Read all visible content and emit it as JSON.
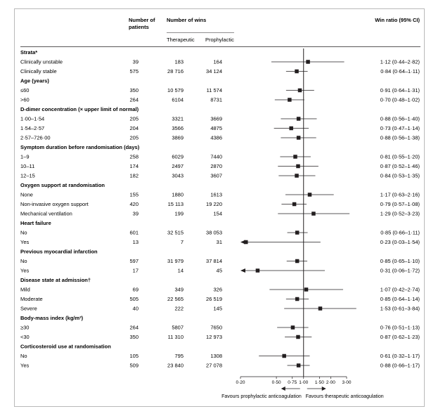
{
  "chart_data": {
    "type": "forest",
    "headers": {
      "patients": [
        "Number of",
        "patients"
      ],
      "wins": "Number of wins",
      "therapeutic": "Therapeutic",
      "prophylactic": "Prophylactic",
      "ratio": "Win ratio (95% CI)"
    },
    "x_axis": {
      "scale": "log",
      "range": [
        0.2,
        3.0
      ],
      "reference": 1.0,
      "ticks": [
        "0·20",
        "0·50",
        "0·75",
        "1·00",
        "1·50",
        "2·00",
        "3·00"
      ],
      "tick_values": [
        0.2,
        0.5,
        0.75,
        1.0,
        1.5,
        2.0,
        3.0
      ],
      "label_left": "Favours prophylactic anticoagulation",
      "label_right": "Favours therapeutic anticoagulation"
    },
    "rows": [
      {
        "type": "group",
        "label": "Strata*"
      },
      {
        "type": "row",
        "label": "Clinically unstable",
        "n": "39",
        "ther": "183",
        "proph": "164",
        "ratio": "1·12 (0·44–2·82)",
        "est": 1.12,
        "lo": 0.44,
        "hi": 2.82
      },
      {
        "type": "row",
        "label": "Clinically stable",
        "n": "575",
        "ther": "28 716",
        "proph": "34 124",
        "ratio": "0·84 (0·64–1·11)",
        "est": 0.84,
        "lo": 0.64,
        "hi": 1.11
      },
      {
        "type": "group",
        "label": "Age (years)"
      },
      {
        "type": "row",
        "label": "≤60",
        "n": "350",
        "ther": "10 579",
        "proph": "11 574",
        "ratio": "0·91 (0·64–1·31)",
        "est": 0.91,
        "lo": 0.64,
        "hi": 1.31
      },
      {
        "type": "row",
        "label": ">60",
        "n": "264",
        "ther": "6104",
        "proph": "8731",
        "ratio": "0·70 (0·48–1·02)",
        "est": 0.7,
        "lo": 0.48,
        "hi": 1.02
      },
      {
        "type": "group",
        "label": "D-dimer concentration (× upper limit of normal)"
      },
      {
        "type": "row",
        "label": "1·00–1·54",
        "n": "205",
        "ther": "3321",
        "proph": "3669",
        "ratio": "0·88 (0·56–1·40)",
        "est": 0.88,
        "lo": 0.56,
        "hi": 1.4
      },
      {
        "type": "row",
        "label": "1·54–2·57",
        "n": "204",
        "ther": "3566",
        "proph": "4875",
        "ratio": "0·73 (0·47–1·14)",
        "est": 0.73,
        "lo": 0.47,
        "hi": 1.14
      },
      {
        "type": "row",
        "label": "2·57–726·00",
        "n": "205",
        "ther": "3869",
        "proph": "4386",
        "ratio": "0·88 (0·56–1·38)",
        "est": 0.88,
        "lo": 0.56,
        "hi": 1.38
      },
      {
        "type": "group",
        "label": "Symptom duration before randomisation (days)"
      },
      {
        "type": "row",
        "label": "1–9",
        "n": "258",
        "ther": "6029",
        "proph": "7440",
        "ratio": "0·81 (0·55–1·20)",
        "est": 0.81,
        "lo": 0.55,
        "hi": 1.2
      },
      {
        "type": "row",
        "label": "10–11",
        "n": "174",
        "ther": "2497",
        "proph": "2870",
        "ratio": "0·87 (0·52–1·46)",
        "est": 0.87,
        "lo": 0.52,
        "hi": 1.46
      },
      {
        "type": "row",
        "label": "12–15",
        "n": "182",
        "ther": "3043",
        "proph": "3607",
        "ratio": "0·84 (0·53–1·35)",
        "est": 0.84,
        "lo": 0.53,
        "hi": 1.35
      },
      {
        "type": "group",
        "label": "Oxygen support at randomisation"
      },
      {
        "type": "row",
        "label": "None",
        "n": "155",
        "ther": "1880",
        "proph": "1613",
        "ratio": "1·17 (0·63–2·16)",
        "est": 1.17,
        "lo": 0.63,
        "hi": 2.16
      },
      {
        "type": "row",
        "label": "Non-invasive oxygen support",
        "n": "420",
        "ther": "15 113",
        "proph": "19 220",
        "ratio": "0·79 (0·57–1·08)",
        "est": 0.79,
        "lo": 0.57,
        "hi": 1.08
      },
      {
        "type": "row",
        "label": "Mechanical ventilation",
        "n": "39",
        "ther": "199",
        "proph": "154",
        "ratio": "1·29 (0·52–3·23)",
        "est": 1.29,
        "lo": 0.52,
        "hi": 3.23
      },
      {
        "type": "group",
        "label": "Heart failure"
      },
      {
        "type": "row",
        "label": "No",
        "n": "601",
        "ther": "32 515",
        "proph": "38 053",
        "ratio": "0·85 (0·66–1·11)",
        "est": 0.85,
        "lo": 0.66,
        "hi": 1.11
      },
      {
        "type": "row",
        "label": "Yes",
        "n": "13",
        "ther": "7",
        "proph": "31",
        "ratio": "0·23 (0·03–1·54)",
        "est": 0.23,
        "lo": 0.03,
        "hi": 1.54
      },
      {
        "type": "group",
        "label": "Previous myocardial infarction"
      },
      {
        "type": "row",
        "label": "No",
        "n": "597",
        "ther": "31 979",
        "proph": "37 814",
        "ratio": "0·85 (0·65–1·10)",
        "est": 0.85,
        "lo": 0.65,
        "hi": 1.1
      },
      {
        "type": "row",
        "label": "Yes",
        "n": "17",
        "ther": "14",
        "proph": "45",
        "ratio": "0·31 (0·06–1·72)",
        "est": 0.31,
        "lo": 0.06,
        "hi": 1.72
      },
      {
        "type": "group",
        "label": "Disease state at admission†"
      },
      {
        "type": "row",
        "label": "Mild",
        "n": "69",
        "ther": "349",
        "proph": "326",
        "ratio": "1·07 (0·42–2·74)",
        "est": 1.07,
        "lo": 0.42,
        "hi": 2.74
      },
      {
        "type": "row",
        "label": "Moderate",
        "n": "505",
        "ther": "22 565",
        "proph": "26 519",
        "ratio": "0·85 (0·64–1·14)",
        "est": 0.85,
        "lo": 0.64,
        "hi": 1.14
      },
      {
        "type": "row",
        "label": "Severe",
        "n": "40",
        "ther": "222",
        "proph": "145",
        "ratio": "1·53 (0·61–3·84)",
        "est": 1.53,
        "lo": 0.61,
        "hi": 3.84
      },
      {
        "type": "group",
        "label": "Body-mass index (kg/m²)"
      },
      {
        "type": "row",
        "label": "≥30",
        "n": "264",
        "ther": "5807",
        "proph": "7650",
        "ratio": "0·76 (0·51–1·13)",
        "est": 0.76,
        "lo": 0.51,
        "hi": 1.13
      },
      {
        "type": "row",
        "label": "<30",
        "n": "350",
        "ther": "11 310",
        "proph": "12 973",
        "ratio": "0·87 (0·62–1·23)",
        "est": 0.87,
        "lo": 0.62,
        "hi": 1.23
      },
      {
        "type": "group",
        "label": "Corticosteroid use at randomisation"
      },
      {
        "type": "row",
        "label": "No",
        "n": "105",
        "ther": "795",
        "proph": "1308",
        "ratio": "0·61 (0·32–1·17)",
        "est": 0.61,
        "lo": 0.32,
        "hi": 1.17
      },
      {
        "type": "row",
        "label": "Yes",
        "n": "509",
        "ther": "23 840",
        "proph": "27 078",
        "ratio": "0·88 (0·66–1·17)",
        "est": 0.88,
        "lo": 0.66,
        "hi": 1.17
      }
    ]
  }
}
